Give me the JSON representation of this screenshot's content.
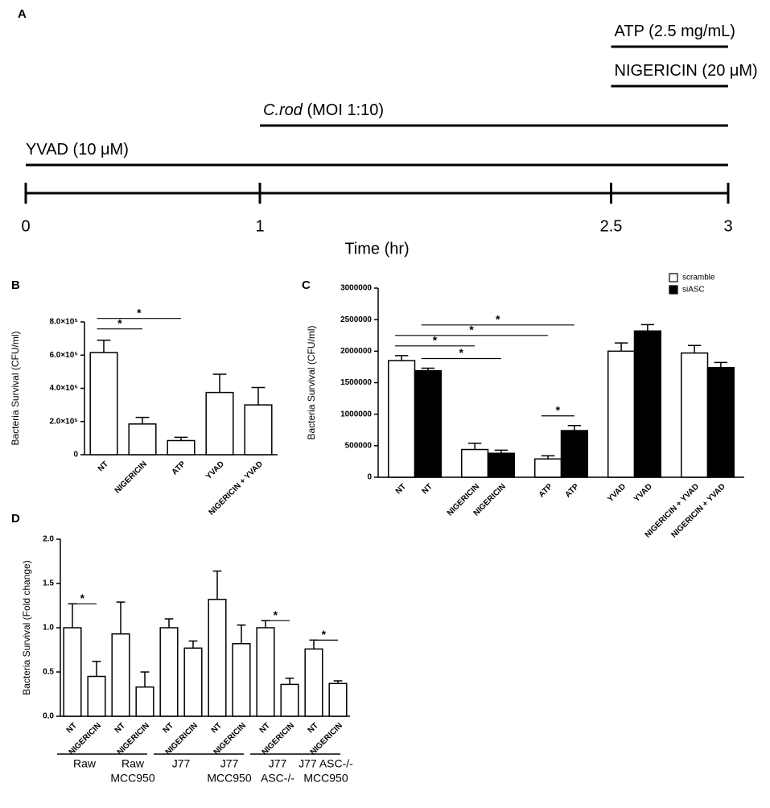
{
  "chart_data": [
    {
      "type": "timeline",
      "panel": "A",
      "xlabel": "Time (hr)",
      "xlim": [
        0,
        3
      ],
      "xticks": [
        0,
        1,
        2.5,
        3
      ],
      "treatments": [
        {
          "name": "YVAD",
          "detail": "(10 μM)",
          "start": 0,
          "end": 3
        },
        {
          "name": "C.rod",
          "detail": "(MOI 1:10)",
          "italic": true,
          "start": 1,
          "end": 3
        },
        {
          "name": "NIGERICIN",
          "detail": "(20 μM)",
          "start": 2.5,
          "end": 3
        },
        {
          "name": "ATP",
          "detail": "(2.5 mg/mL)",
          "start": 2.5,
          "end": 3
        }
      ]
    },
    {
      "type": "bar",
      "panel": "B",
      "ylabel": "Bacteria Survival (CFU/ml)",
      "categories": [
        "NT",
        "NIGERICIN",
        "ATP",
        "YVAD",
        "NIGERICIN + YVAD"
      ],
      "values": [
        615000,
        185000,
        85000,
        375000,
        300000
      ],
      "errors": [
        75000,
        40000,
        20000,
        110000,
        105000
      ],
      "color": "#ffffff",
      "ylim": [
        0,
        800000
      ],
      "yticks": [
        0,
        {
          "value": 200000,
          "label": "2.0×10⁵"
        },
        {
          "value": 400000,
          "label": "4.0×10⁵"
        },
        {
          "value": 600000,
          "label": "6.0×10⁵"
        },
        {
          "value": 800000,
          "label": "8.0×10⁵"
        }
      ],
      "significance": [
        {
          "from": 0,
          "to": 1,
          "label": "*"
        },
        {
          "from": 0,
          "to": 2,
          "label": "*"
        }
      ]
    },
    {
      "type": "grouped_bar",
      "panel": "C",
      "ylabel": "Bacteria Survival (CFU/ml)",
      "categories": [
        "NT",
        "NIGERICIN",
        "ATP",
        "YVAD",
        "NIGERICIN + YVAD"
      ],
      "series": [
        {
          "name": "scramble",
          "color": "#ffffff",
          "values": [
            1850000,
            440000,
            290000,
            2000000,
            1970000
          ],
          "errors": [
            80000,
            100000,
            50000,
            130000,
            120000
          ]
        },
        {
          "name": "siASC",
          "color": "#000000",
          "values": [
            1690000,
            380000,
            740000,
            2320000,
            1740000
          ],
          "errors": [
            40000,
            50000,
            80000,
            100000,
            80000
          ]
        }
      ],
      "ylim": [
        0,
        3000000
      ],
      "yticks": [
        0,
        500000,
        1000000,
        1500000,
        2000000,
        2500000,
        3000000
      ],
      "legend": "upper right",
      "significance": [
        {
          "from": 0,
          "to": 2,
          "label": "*"
        },
        {
          "from": 0,
          "to": 4,
          "label": "*"
        },
        {
          "from": 1,
          "to": 3,
          "label": "*"
        },
        {
          "from": 1,
          "to": 5,
          "label": "*"
        },
        {
          "from": 4,
          "to": 5,
          "label": "*"
        }
      ]
    },
    {
      "type": "bar",
      "panel": "D",
      "ylabel": "Bacteria Survival (Fold change)",
      "categories": [
        "NT",
        "NIGERICIN",
        "NT",
        "NIGERICIN",
        "NT",
        "NIGERICIN",
        "NT",
        "NIGERICIN",
        "NT",
        "NIGERICIN",
        "NT",
        "NIGERICIN"
      ],
      "values": [
        1.0,
        0.45,
        0.93,
        0.33,
        1.0,
        0.77,
        1.32,
        0.82,
        1.0,
        0.36,
        0.76,
        0.37
      ],
      "errors": [
        0.27,
        0.17,
        0.36,
        0.17,
        0.1,
        0.08,
        0.32,
        0.21,
        0.08,
        0.07,
        0.1,
        0.03
      ],
      "color": "#ffffff",
      "ylim": [
        0,
        2
      ],
      "yticks": [
        {
          "value": 0,
          "label": "0.0"
        },
        {
          "value": 0.5,
          "label": "0.5"
        },
        {
          "value": 1,
          "label": "1.0"
        },
        {
          "value": 1.5,
          "label": "1.5"
        },
        {
          "value": 2,
          "label": "2.0"
        }
      ],
      "groups": [
        [
          "Raw"
        ],
        [
          "Raw",
          "MCC950"
        ],
        [
          "J77"
        ],
        [
          "J77",
          "MCC950"
        ],
        [
          "J77",
          "ASC-/-"
        ],
        [
          "J77 ASC-/-",
          "MCC950"
        ]
      ],
      "significance": [
        {
          "from": 0,
          "to": 1,
          "label": "*"
        },
        {
          "from": 8,
          "to": 9,
          "label": "*"
        },
        {
          "from": 10,
          "to": 11,
          "label": "*"
        }
      ]
    }
  ]
}
